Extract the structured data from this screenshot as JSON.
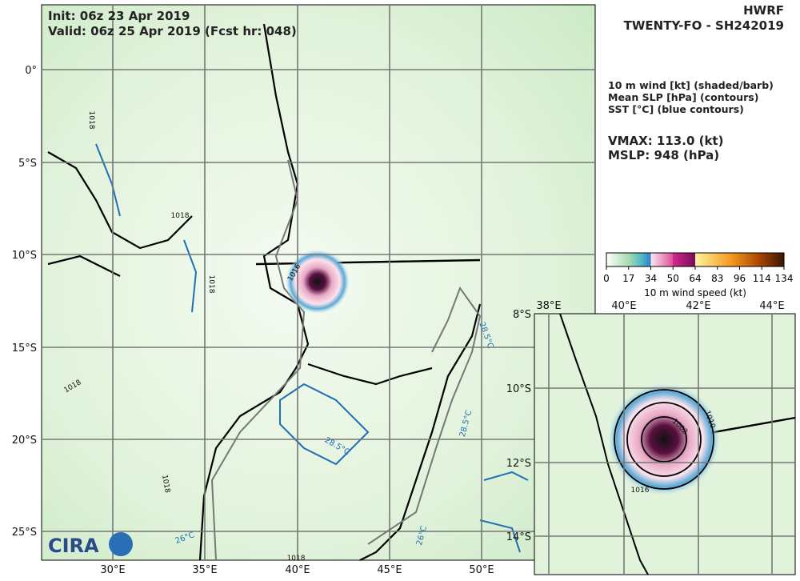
{
  "header": {
    "model": "HWRF",
    "storm": "TWENTY-FO - SH242019",
    "init": "Init:   06z 23 Apr 2019",
    "valid": "Valid: 06z 25 Apr 2019 (Fcst hr: 048)"
  },
  "legend": {
    "lines": [
      "10 m wind [kt] (shaded/barb)",
      "Mean SLP [hPa] (contours)",
      "SST [°C] (blue contours)"
    ],
    "vmax": "VMAX: 113.0 (kt)",
    "mslp": "MSLP:  948 (hPa)"
  },
  "colorbar": {
    "ticks": [
      0,
      17,
      34,
      50,
      64,
      83,
      96,
      114,
      134
    ],
    "label": "10 m wind speed (kt)"
  },
  "main_map": {
    "lat_labels": [
      "0°",
      "5°S",
      "10°S",
      "15°S",
      "20°S",
      "25°S"
    ],
    "lon_labels": [
      "30°E",
      "35°E",
      "40°E",
      "45°E",
      "50°E"
    ],
    "contour_labels": [
      "1018",
      "1018",
      "1018",
      "1016",
      "1018",
      "1018",
      "1018"
    ],
    "sst_labels": [
      "28.5°C",
      "28.5°C",
      "28.5°C",
      "26°C",
      "26°C"
    ]
  },
  "inset": {
    "lat_labels": [
      "8°S",
      "10°S",
      "12°S",
      "14°S"
    ],
    "lon_labels": [
      "38°E",
      "40°E",
      "42°E",
      "44°E"
    ],
    "contour_labels": [
      "1002",
      "1010",
      "1016"
    ]
  },
  "logo": "CIRA"
}
